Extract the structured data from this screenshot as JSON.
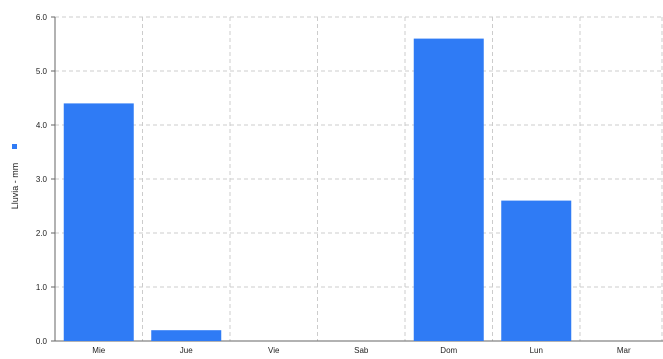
{
  "chart_data": {
    "type": "bar",
    "title": "",
    "xlabel": "",
    "ylabel": "Lluvia - mm",
    "categories": [
      "Mie",
      "Jue",
      "Vie",
      "Sab",
      "Dom",
      "Lun",
      "Mar"
    ],
    "series": [
      {
        "values": [
          4.4,
          0.2,
          0,
          0,
          5.6,
          2.6,
          0
        ]
      }
    ],
    "ylim": [
      0,
      6
    ],
    "yticks": [
      "0.0",
      "1.0",
      "2.0",
      "3.0",
      "4.0",
      "5.0",
      "6.0"
    ],
    "grid": true,
    "grid_style": "dashed",
    "legend_position": "left",
    "colors": {
      "bar": "#2f7bf5",
      "grid": "#cccccc",
      "axis": "#666666"
    }
  }
}
